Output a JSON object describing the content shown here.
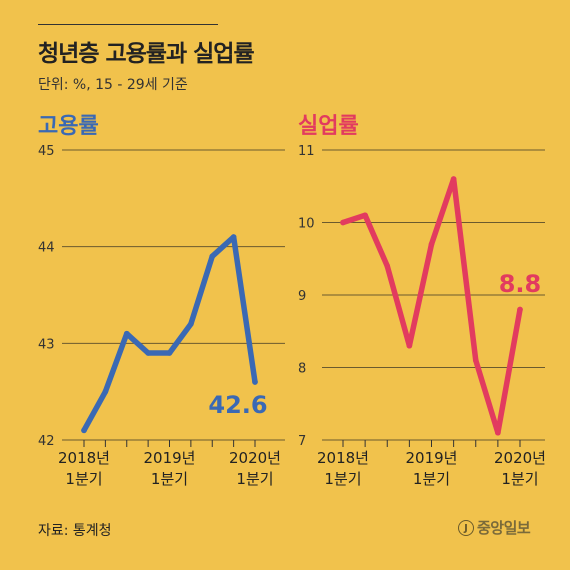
{
  "title": "청년층 고용률과 실업률",
  "unit": "단위: %, 15 - 29세 기준",
  "source": "자료: 통계청",
  "logo": {
    "mark": "J",
    "text": "중앙일보"
  },
  "colors": {
    "background": "#f1c24c",
    "employment": "#3a69b4",
    "unemployment": "#e23b5f",
    "grid": "#6b5a2e"
  },
  "chart_data": [
    {
      "type": "line",
      "title": "고용률",
      "x": [
        "2018년 1분기",
        "2018년 2분기",
        "2018년 3분기",
        "2018년 4분기",
        "2019년 1분기",
        "2019년 2분기",
        "2019년 3분기",
        "2019년 4분기",
        "2020년 1분기"
      ],
      "series": [
        {
          "values": [
            42.1,
            42.5,
            43.1,
            42.9,
            42.9,
            43.2,
            43.9,
            44.1,
            42.6
          ]
        }
      ],
      "ylim": [
        42,
        45
      ],
      "yticks": [
        "42",
        "43",
        "44",
        "45"
      ],
      "xtick_labels": [
        {
          "index": 0,
          "line1": "2018년",
          "line2": "1분기"
        },
        {
          "index": 4,
          "line1": "2019년",
          "line2": "1분기"
        },
        {
          "index": 8,
          "line1": "2020년",
          "line2": "1분기"
        }
      ],
      "annotation": "42.6",
      "grid": true
    },
    {
      "type": "line",
      "title": "실업률",
      "x": [
        "2018년 1분기",
        "2018년 2분기",
        "2018년 3분기",
        "2018년 4분기",
        "2019년 1분기",
        "2019년 2분기",
        "2019년 3분기",
        "2019년 4분기",
        "2020년 1분기"
      ],
      "series": [
        {
          "values": [
            10.0,
            10.1,
            9.4,
            8.3,
            9.7,
            10.6,
            8.1,
            7.1,
            8.8
          ]
        }
      ],
      "ylim": [
        7,
        11
      ],
      "yticks": [
        "7",
        "8",
        "9",
        "10",
        "11"
      ],
      "xtick_labels": [
        {
          "index": 0,
          "line1": "2018년",
          "line2": "1분기"
        },
        {
          "index": 4,
          "line1": "2019년",
          "line2": "1분기"
        },
        {
          "index": 8,
          "line1": "2020년",
          "line2": "1분기"
        }
      ],
      "annotation": "8.8",
      "grid": true
    }
  ]
}
